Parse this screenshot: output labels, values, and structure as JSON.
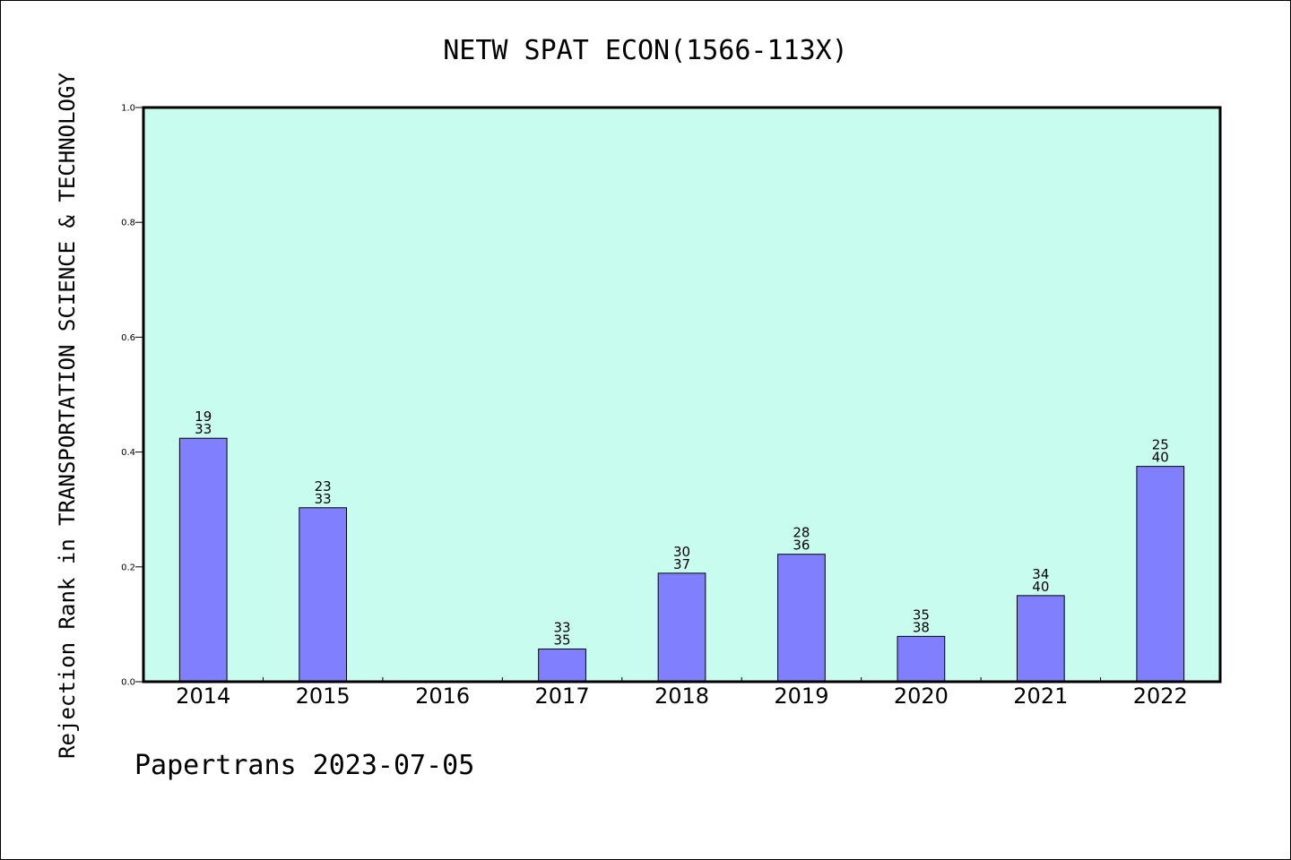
{
  "chart_data": {
    "type": "bar",
    "title": "NETW SPAT ECON(1566-113X)",
    "ylabel": "Rejection Rank in TRANSPORTATION SCIENCE & TECHNOLOGY",
    "xlabel": "",
    "categories": [
      "2014",
      "2015",
      "2016",
      "2017",
      "2018",
      "2019",
      "2020",
      "2021",
      "2022"
    ],
    "values": [
      0.424,
      0.303,
      null,
      0.057,
      0.189,
      0.222,
      0.079,
      0.15,
      0.375
    ],
    "bar_labels": [
      {
        "top": "19",
        "bottom": "33"
      },
      {
        "top": "23",
        "bottom": "33"
      },
      null,
      {
        "top": "33",
        "bottom": "35"
      },
      {
        "top": "30",
        "bottom": "37"
      },
      {
        "top": "28",
        "bottom": "36"
      },
      {
        "top": "35",
        "bottom": "38"
      },
      {
        "top": "34",
        "bottom": "40"
      },
      {
        "top": "25",
        "bottom": "40"
      }
    ],
    "ylim": [
      0,
      1.0
    ],
    "yticks": [
      "0.0",
      "0.2",
      "0.4",
      "0.6",
      "0.8",
      "1.0"
    ],
    "grid": false,
    "colors": {
      "plot_background": "#c8fcee",
      "bar_fill": "#8080ff",
      "bar_edge": "#000000"
    }
  },
  "footer": "Papertrans 2023-07-05"
}
